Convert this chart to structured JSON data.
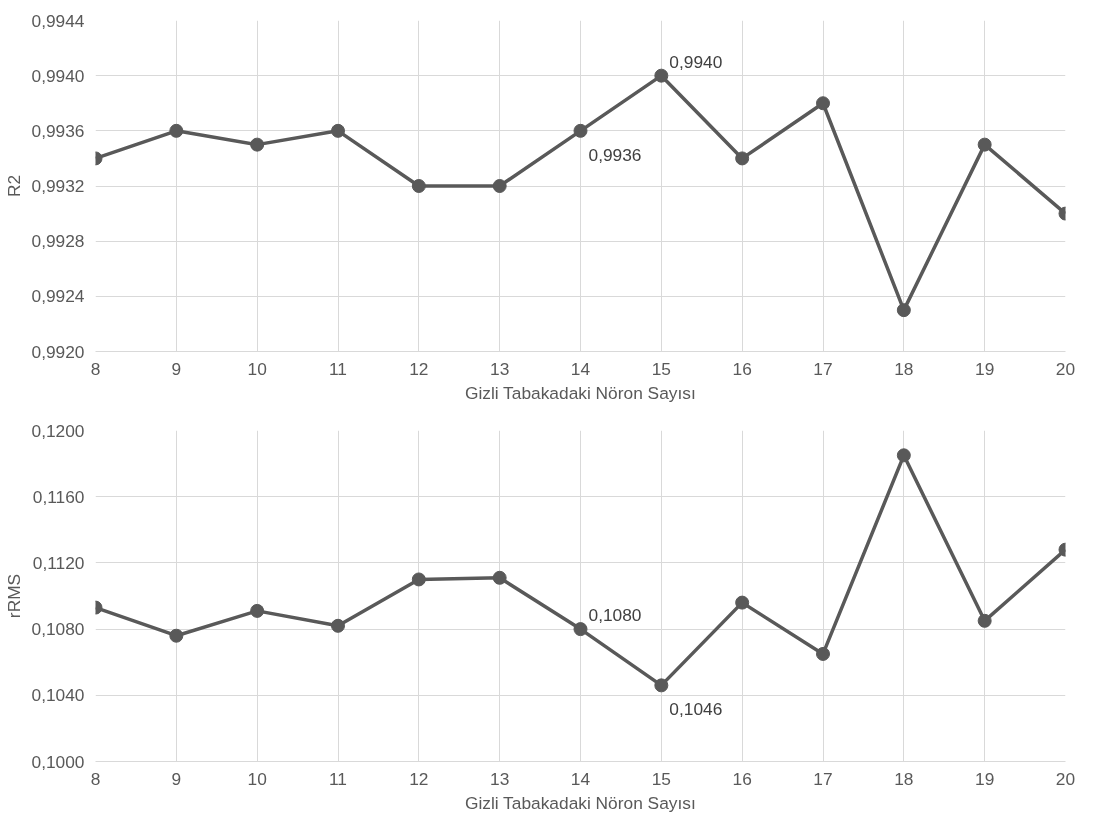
{
  "chart_data": [
    {
      "type": "line",
      "xlabel": "Gizli Tabakadaki Nöron Sayısı",
      "ylabel": "R2",
      "x": [
        8,
        9,
        10,
        11,
        12,
        13,
        14,
        15,
        16,
        17,
        18,
        19,
        20
      ],
      "series": [
        {
          "color": "#595959",
          "values": [
            0.9934,
            0.9936,
            0.9935,
            0.9936,
            0.9932,
            0.9932,
            0.9936,
            0.994,
            0.9934,
            0.9938,
            0.9923,
            0.9935,
            0.993
          ],
          "value_labels": [
            null,
            null,
            null,
            null,
            null,
            null,
            "0,9936",
            "0,9940",
            null,
            null,
            null,
            null,
            null
          ]
        }
      ],
      "xlim": [
        8,
        20
      ],
      "xticks": [
        8,
        9,
        10,
        11,
        12,
        13,
        14,
        15,
        16,
        17,
        18,
        19,
        20
      ],
      "ylim": [
        0.992,
        0.9944
      ],
      "yticks": [
        {
          "value": 0.992,
          "label": "0,9920"
        },
        {
          "value": 0.9924,
          "label": "0,9924"
        },
        {
          "value": 0.9928,
          "label": "0,9928"
        },
        {
          "value": 0.9932,
          "label": "0,9932"
        },
        {
          "value": 0.9936,
          "label": "0,9936"
        },
        {
          "value": 0.994,
          "label": "0,9940"
        },
        {
          "value": 0.9944,
          "label": "0,9944"
        }
      ],
      "grid": true,
      "marker": "circle",
      "line_style": "solid"
    },
    {
      "type": "line",
      "xlabel": "Gizli Tabakadaki Nöron Sayısı",
      "ylabel": "rRMS",
      "x": [
        8,
        9,
        10,
        11,
        12,
        13,
        14,
        15,
        16,
        17,
        18,
        19,
        20
      ],
      "series": [
        {
          "color": "#595959",
          "values": [
            0.1093,
            0.1076,
            0.1091,
            0.1082,
            0.111,
            0.1111,
            0.108,
            0.1046,
            0.1096,
            0.1065,
            0.1185,
            0.1085,
            0.1128
          ],
          "value_labels": [
            null,
            null,
            null,
            null,
            null,
            null,
            "0,1080",
            "0,1046",
            null,
            null,
            null,
            null,
            null
          ]
        }
      ],
      "xlim": [
        8,
        20
      ],
      "xticks": [
        8,
        9,
        10,
        11,
        12,
        13,
        14,
        15,
        16,
        17,
        18,
        19,
        20
      ],
      "ylim": [
        0.1,
        0.12
      ],
      "yticks": [
        {
          "value": 0.1,
          "label": "0,1000"
        },
        {
          "value": 0.104,
          "label": "0,1040"
        },
        {
          "value": 0.108,
          "label": "0,1080"
        },
        {
          "value": 0.112,
          "label": "0,1120"
        },
        {
          "value": 0.116,
          "label": "0,1160"
        },
        {
          "value": 0.12,
          "label": "0,1200"
        }
      ],
      "grid": true,
      "marker": "circle",
      "line_style": "solid"
    }
  ]
}
